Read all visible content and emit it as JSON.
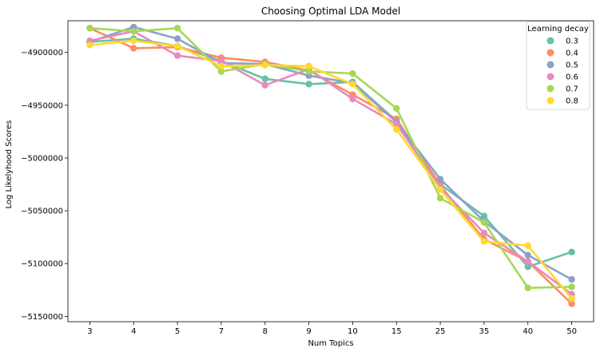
{
  "chart_data": {
    "type": "line",
    "title": "Choosing Optimal LDA Model",
    "xlabel": "Num Topics",
    "ylabel": "Log Likelyhood Scores",
    "categories": [
      "3",
      "4",
      "5",
      "7",
      "8",
      "9",
      "10",
      "15",
      "25",
      "35",
      "40",
      "50"
    ],
    "y_ticks": [
      -4900000,
      -4950000,
      -5000000,
      -5050000,
      -5100000,
      -5150000
    ],
    "y_tick_labels": [
      "−4900000",
      "−4950000",
      "−5000000",
      "−5050000",
      "−5100000",
      "−5150000"
    ],
    "ylim": [
      -5155000,
      -4870000
    ],
    "grid": false,
    "legend": {
      "title": "Learning decay",
      "placement": "top-right"
    },
    "series": [
      {
        "name": "0.3",
        "color": "#66c2a5",
        "values": [
          -4890000,
          -4887000,
          -4894000,
          -4908000,
          -4925000,
          -4930000,
          -4928000,
          -4965000,
          -5025000,
          -5055000,
          -5103000,
          -5089000
        ]
      },
      {
        "name": "0.4",
        "color": "#fc8d62",
        "values": [
          -4877000,
          -4896000,
          -4895000,
          -4905000,
          -4909000,
          -4917000,
          -4940000,
          -4963000,
          -5026000,
          -5077000,
          -5098000,
          -5138000
        ]
      },
      {
        "name": "0.5",
        "color": "#8da0cb",
        "values": [
          -4890000,
          -4876000,
          -4887000,
          -4910000,
          -4911000,
          -4922000,
          -4929000,
          -4966000,
          -5020000,
          -5060000,
          -5092000,
          -5115000
        ]
      },
      {
        "name": "0.6",
        "color": "#e78ac3",
        "values": [
          -4889000,
          -4880000,
          -4903000,
          -4908000,
          -4931000,
          -4916000,
          -4944000,
          -4968000,
          -5028000,
          -5071000,
          -5098000,
          -5129000
        ]
      },
      {
        "name": "0.7",
        "color": "#a6d854",
        "values": [
          -4877000,
          -4880000,
          -4877000,
          -4918000,
          -4911000,
          -4918000,
          -4920000,
          -4953000,
          -5038000,
          -5061000,
          -5123000,
          -5122000
        ]
      },
      {
        "name": "0.8",
        "color": "#ffd92f",
        "values": [
          -4893000,
          -4889000,
          -4894000,
          -4913000,
          -4912000,
          -4913000,
          -4930000,
          -4973000,
          -5030000,
          -5079000,
          -5083000,
          -5133000
        ]
      }
    ]
  }
}
